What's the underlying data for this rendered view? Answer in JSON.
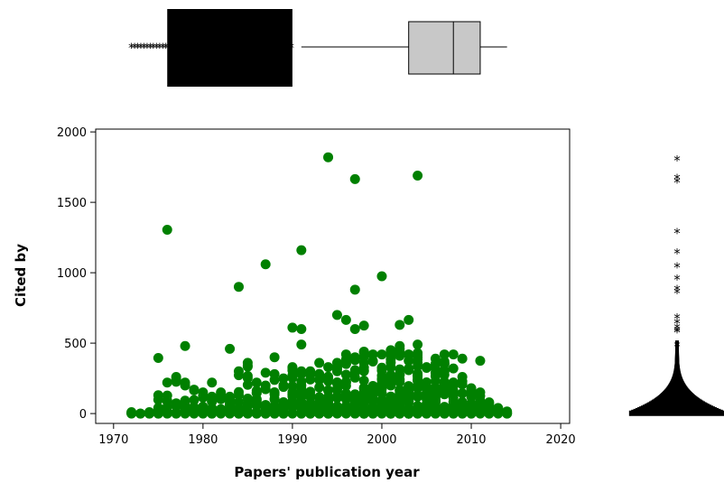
{
  "chart_data": {
    "type": "scatter",
    "xlabel": "Papers' publication year",
    "ylabel": "Cited by",
    "xlim": [
      1968,
      2021
    ],
    "ylim": [
      -70,
      2020
    ],
    "xticks": [
      1970,
      1980,
      1990,
      2000,
      2010,
      2020
    ],
    "yticks": [
      0,
      500,
      1000,
      1500,
      2000
    ],
    "grid": false,
    "legend": "none",
    "point_color": "#008000",
    "marginal_box_x": {
      "whisker_low": 1991,
      "q1": 2003,
      "median": 2008,
      "q3": 2011,
      "whisker_high": 2014,
      "outliers_range": [
        1972,
        1990
      ]
    },
    "marginal_box_y": {
      "outlier_values": [
        1820,
        1690,
        1665,
        1305,
        1160,
        1060,
        975,
        900,
        880,
        700,
        665,
        630,
        610,
        600,
        500
      ]
    },
    "outliers": [
      {
        "x": 1994,
        "y": 1820
      },
      {
        "x": 2004,
        "y": 1690
      },
      {
        "x": 1997,
        "y": 1665
      },
      {
        "x": 1976,
        "y": 1305
      },
      {
        "x": 1991,
        "y": 1160
      },
      {
        "x": 1987,
        "y": 1060
      },
      {
        "x": 2000,
        "y": 975
      },
      {
        "x": 1984,
        "y": 900
      },
      {
        "x": 1997,
        "y": 880
      },
      {
        "x": 1995,
        "y": 700
      },
      {
        "x": 1996,
        "y": 665
      },
      {
        "x": 2003,
        "y": 665
      },
      {
        "x": 2002,
        "y": 630
      },
      {
        "x": 1998,
        "y": 625
      },
      {
        "x": 1990,
        "y": 610
      },
      {
        "x": 1991,
        "y": 600
      },
      {
        "x": 1997,
        "y": 600
      },
      {
        "x": 1991,
        "y": 490
      },
      {
        "x": 1978,
        "y": 480
      },
      {
        "x": 1983,
        "y": 460
      },
      {
        "x": 2004,
        "y": 490
      },
      {
        "x": 2002,
        "y": 480
      },
      {
        "x": 2007,
        "y": 420
      },
      {
        "x": 2008,
        "y": 420
      },
      {
        "x": 1975,
        "y": 395
      },
      {
        "x": 2009,
        "y": 390
      },
      {
        "x": 2011,
        "y": 375
      },
      {
        "x": 1988,
        "y": 400
      },
      {
        "x": 1985,
        "y": 360
      }
    ],
    "scatter_density": [
      {
        "x": 1972,
        "max": 10,
        "n": 2
      },
      {
        "x": 1973,
        "max": 0,
        "n": 1
      },
      {
        "x": 1974,
        "max": 10,
        "n": 2
      },
      {
        "x": 1975,
        "max": 130,
        "n": 5
      },
      {
        "x": 1976,
        "max": 220,
        "n": 7
      },
      {
        "x": 1977,
        "max": 260,
        "n": 8
      },
      {
        "x": 1978,
        "max": 220,
        "n": 8
      },
      {
        "x": 1979,
        "max": 170,
        "n": 8
      },
      {
        "x": 1980,
        "max": 150,
        "n": 9
      },
      {
        "x": 1981,
        "max": 220,
        "n": 10
      },
      {
        "x": 1982,
        "max": 150,
        "n": 10
      },
      {
        "x": 1983,
        "max": 120,
        "n": 10
      },
      {
        "x": 1984,
        "max": 300,
        "n": 12
      },
      {
        "x": 1985,
        "max": 340,
        "n": 13
      },
      {
        "x": 1986,
        "max": 220,
        "n": 13
      },
      {
        "x": 1987,
        "max": 290,
        "n": 14
      },
      {
        "x": 1988,
        "max": 280,
        "n": 15
      },
      {
        "x": 1989,
        "max": 250,
        "n": 15
      },
      {
        "x": 1990,
        "max": 330,
        "n": 17
      },
      {
        "x": 1991,
        "max": 300,
        "n": 17
      },
      {
        "x": 1992,
        "max": 300,
        "n": 18
      },
      {
        "x": 1993,
        "max": 360,
        "n": 19
      },
      {
        "x": 1994,
        "max": 330,
        "n": 20
      },
      {
        "x": 1995,
        "max": 360,
        "n": 21
      },
      {
        "x": 1996,
        "max": 420,
        "n": 22
      },
      {
        "x": 1997,
        "max": 400,
        "n": 24
      },
      {
        "x": 1998,
        "max": 440,
        "n": 25
      },
      {
        "x": 1999,
        "max": 420,
        "n": 26
      },
      {
        "x": 2000,
        "max": 420,
        "n": 28
      },
      {
        "x": 2001,
        "max": 450,
        "n": 30
      },
      {
        "x": 2002,
        "max": 460,
        "n": 30
      },
      {
        "x": 2003,
        "max": 420,
        "n": 30
      },
      {
        "x": 2004,
        "max": 430,
        "n": 30
      },
      {
        "x": 2005,
        "max": 330,
        "n": 28
      },
      {
        "x": 2006,
        "max": 390,
        "n": 26
      },
      {
        "x": 2007,
        "max": 370,
        "n": 22
      },
      {
        "x": 2008,
        "max": 320,
        "n": 20
      },
      {
        "x": 2009,
        "max": 260,
        "n": 16
      },
      {
        "x": 2010,
        "max": 180,
        "n": 12
      },
      {
        "x": 2011,
        "max": 150,
        "n": 9
      },
      {
        "x": 2012,
        "max": 80,
        "n": 6
      },
      {
        "x": 2013,
        "max": 40,
        "n": 4
      },
      {
        "x": 2014,
        "max": 15,
        "n": 2
      }
    ]
  }
}
